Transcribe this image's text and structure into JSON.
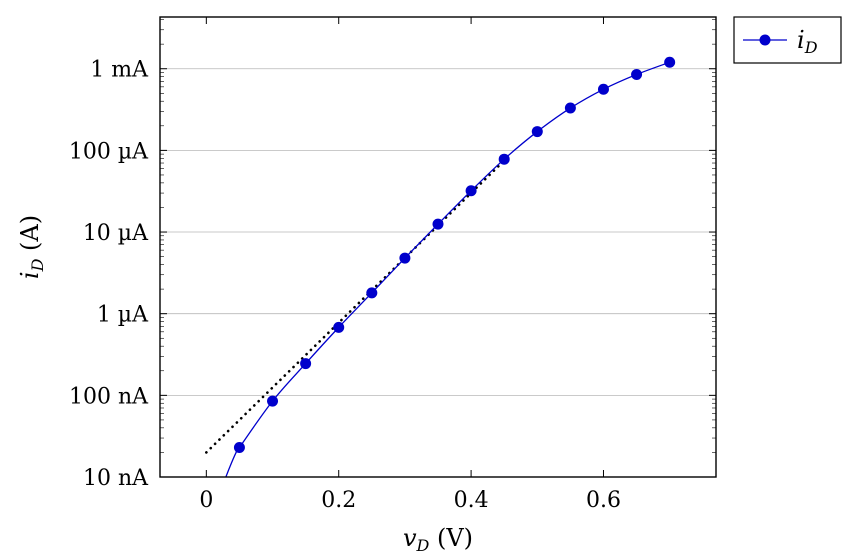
{
  "chart_data": {
    "type": "line",
    "xlabel": "v_D (V)",
    "xlabel_main": "v",
    "xlabel_sub": "D",
    "xlabel_unit": " (V)",
    "ylabel": "i_D (A)",
    "ylabel_main": "i",
    "ylabel_sub": "D",
    "ylabel_unit": " (A)",
    "xlim": [
      -0.07,
      0.77
    ],
    "ylim": [
      1e-08,
      0.0043
    ],
    "yscale": "log",
    "grid": "y-major",
    "legend_position": "outside-top-right",
    "x_ticks": [
      {
        "value": 0,
        "label": "0"
      },
      {
        "value": 0.2,
        "label": "0.2"
      },
      {
        "value": 0.4,
        "label": "0.4"
      },
      {
        "value": 0.6,
        "label": "0.6"
      }
    ],
    "y_ticks": [
      {
        "value": 1e-08,
        "label": "10 nA"
      },
      {
        "value": 1e-07,
        "label": "100 nA"
      },
      {
        "value": 1e-06,
        "label": "1 µA"
      },
      {
        "value": 1e-05,
        "label": "10 µA"
      },
      {
        "value": 0.0001,
        "label": "100 µA"
      },
      {
        "value": 0.001,
        "label": "1 mA"
      }
    ],
    "series": [
      {
        "name": "i_D",
        "legend_main": "i",
        "legend_sub": "D",
        "color": "#0000cc",
        "markers": true,
        "x": [
          0.05,
          0.1,
          0.15,
          0.2,
          0.25,
          0.3,
          0.35,
          0.4,
          0.45,
          0.5,
          0.55,
          0.6,
          0.65,
          0.7
        ],
        "y": [
          2.3e-08,
          8.5e-08,
          2.45e-07,
          6.8e-07,
          1.8e-06,
          4.8e-06,
          1.25e-05,
          3.2e-05,
          7.8e-05,
          0.00017,
          0.00033,
          0.00056,
          0.00085,
          0.0012
        ]
      }
    ],
    "curve_extension": {
      "x": [
        0.025,
        0.035,
        0.045
      ],
      "y": [
        8e-09,
        1.3e-08,
        2e-08
      ]
    },
    "fit_line": {
      "style": "dotted",
      "color": "#000000",
      "x": [
        0,
        0.45
      ],
      "y": [
        2e-08,
        7.5e-05
      ]
    }
  }
}
